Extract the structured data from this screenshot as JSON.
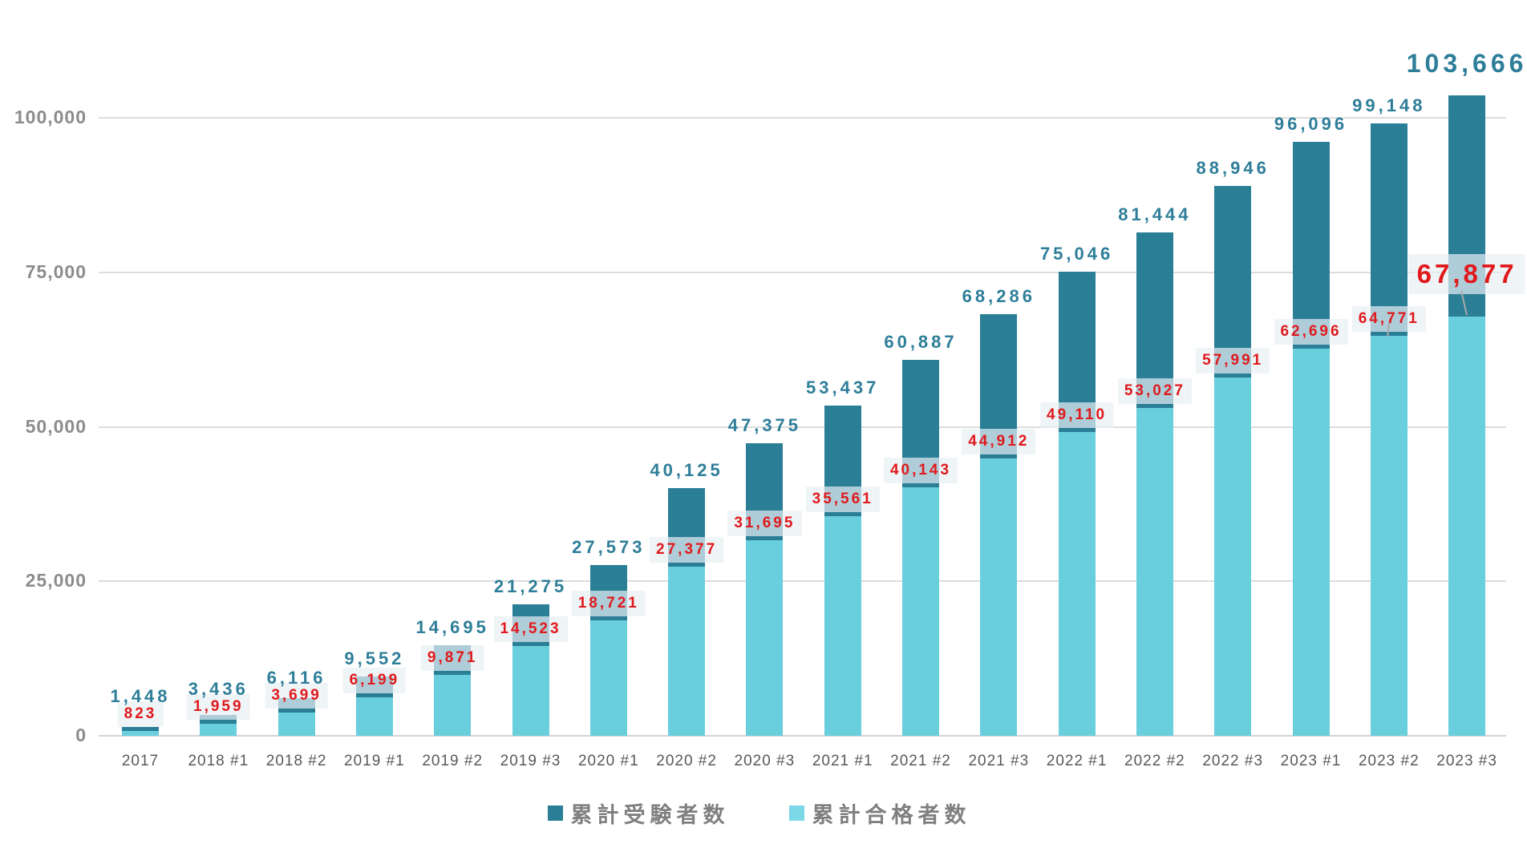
{
  "chart_data": {
    "type": "bar",
    "variant": "overlay-stacked-cumulative",
    "title": "",
    "categories": [
      "2017",
      "2018 #1",
      "2018 #2",
      "2019 #1",
      "2019 #2",
      "2019 #3",
      "2020 #1",
      "2020 #2",
      "2020 #3",
      "2021 #1",
      "2021 #2",
      "2021 #3",
      "2022 #1",
      "2022 #2",
      "2022 #3",
      "2023 #1",
      "2023 #2",
      "2023 #3"
    ],
    "series": [
      {
        "name": "累計受験者数",
        "color": "#2a7e96",
        "values": [
          1448,
          3436,
          6116,
          9552,
          14695,
          21275,
          27573,
          40125,
          47375,
          53437,
          60887,
          68286,
          75046,
          81444,
          88946,
          96096,
          99148,
          103666
        ],
        "labels": [
          "1,448",
          "3,436",
          "6,116",
          "9,552",
          "14,695",
          "21,275",
          "27,573",
          "40,125",
          "47,375",
          "53,437",
          "60,887",
          "68,286",
          "75,046",
          "81,444",
          "88,946",
          "96,096",
          "99,148",
          "103,666"
        ],
        "label_color": "#2e7e99"
      },
      {
        "name": "累計合格者数",
        "color": "#69cfdd",
        "values": [
          823,
          1959,
          3699,
          6199,
          9871,
          14523,
          18721,
          27377,
          31695,
          35561,
          40143,
          44912,
          49110,
          53027,
          57991,
          62696,
          64771,
          67877
        ],
        "labels": [
          "823",
          "1,959",
          "3,699",
          "6,199",
          "9,871",
          "14,523",
          "18,721",
          "27,377",
          "31,695",
          "35,561",
          "40,143",
          "44,912",
          "49,110",
          "53,027",
          "57,991",
          "62,696",
          "64,771",
          "67,877"
        ],
        "label_color": "#e0191c"
      }
    ],
    "ylim": [
      0,
      107000
    ],
    "yticks": [
      0,
      25000,
      50000,
      75000,
      100000
    ],
    "ytick_labels": [
      "0",
      "25,000",
      "50,000",
      "75,000",
      "100,000"
    ],
    "grid": true,
    "legend_position": "bottom",
    "highlight_index": 17,
    "leader_line_indices": [
      16,
      17
    ]
  },
  "legend": {
    "items": [
      {
        "label": "累計受験者数",
        "color": "#2a7e96"
      },
      {
        "label": "累計合格者数",
        "color": "#7cd8e6"
      }
    ]
  },
  "colors": {
    "grid": "#dcdcdc",
    "axis": "#d4d4d4",
    "ytick_text": "#8c8c8c",
    "xtick_text": "#595959",
    "total_label": "#2e7e99",
    "passer_label": "#e0191c",
    "passer_label_bg": "rgba(232,240,243,0.70)",
    "leader": "#a8a8a8"
  }
}
